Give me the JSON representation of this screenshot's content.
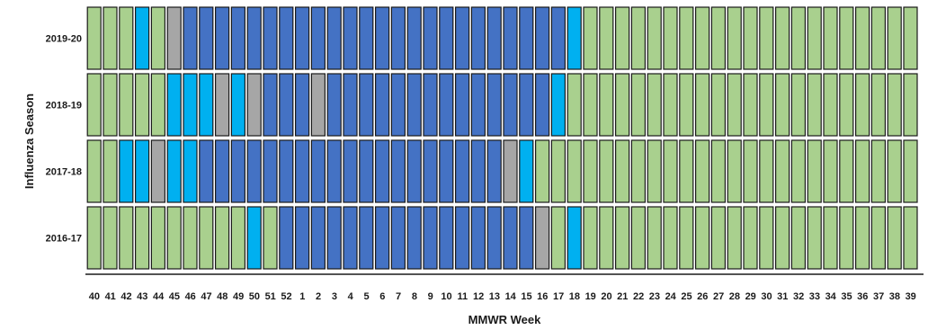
{
  "chart_data": {
    "type": "heatmap",
    "xlabel": "MMWR Week",
    "ylabel": "Influenza Season",
    "weeks": [
      "40",
      "41",
      "42",
      "43",
      "44",
      "45",
      "46",
      "47",
      "48",
      "49",
      "50",
      "51",
      "52",
      "1",
      "2",
      "3",
      "4",
      "5",
      "6",
      "7",
      "8",
      "9",
      "10",
      "11",
      "12",
      "13",
      "14",
      "15",
      "16",
      "17",
      "18",
      "19",
      "20",
      "21",
      "22",
      "23",
      "24",
      "25",
      "26",
      "27",
      "28",
      "29",
      "30",
      "31",
      "32",
      "33",
      "34",
      "35",
      "36",
      "37",
      "38",
      "39"
    ],
    "seasons": [
      "2019-20",
      "2018-19",
      "2017-18",
      "2016-17"
    ],
    "legend_colors": {
      "G": "#a9d08e",
      "C": "#00b0f0",
      "B": "#4472c4",
      "X": "#a6a6a6"
    },
    "rows": [
      {
        "season": "2019-20",
        "cells": [
          "G",
          "G",
          "G",
          "C",
          "G",
          "X",
          "B",
          "B",
          "B",
          "B",
          "B",
          "B",
          "B",
          "B",
          "B",
          "B",
          "B",
          "B",
          "B",
          "B",
          "B",
          "B",
          "B",
          "B",
          "B",
          "B",
          "B",
          "B",
          "B",
          "B",
          "C",
          "G",
          "G",
          "G",
          "G",
          "G",
          "G",
          "G",
          "G",
          "G",
          "G",
          "G",
          "G",
          "G",
          "G",
          "G",
          "G",
          "G",
          "G",
          "G",
          "G",
          "G"
        ]
      },
      {
        "season": "2018-19",
        "cells": [
          "G",
          "G",
          "G",
          "G",
          "G",
          "C",
          "C",
          "C",
          "X",
          "C",
          "X",
          "B",
          "B",
          "B",
          "X",
          "B",
          "B",
          "B",
          "B",
          "B",
          "B",
          "B",
          "B",
          "B",
          "B",
          "B",
          "B",
          "B",
          "B",
          "C",
          "G",
          "G",
          "G",
          "G",
          "G",
          "G",
          "G",
          "G",
          "G",
          "G",
          "G",
          "G",
          "G",
          "G",
          "G",
          "G",
          "G",
          "G",
          "G",
          "G",
          "G",
          "G"
        ]
      },
      {
        "season": "2017-18",
        "cells": [
          "G",
          "G",
          "C",
          "C",
          "X",
          "C",
          "C",
          "B",
          "B",
          "B",
          "B",
          "B",
          "B",
          "B",
          "B",
          "B",
          "B",
          "B",
          "B",
          "B",
          "B",
          "B",
          "B",
          "B",
          "B",
          "B",
          "X",
          "C",
          "G",
          "G",
          "G",
          "G",
          "G",
          "G",
          "G",
          "G",
          "G",
          "G",
          "G",
          "G",
          "G",
          "G",
          "G",
          "G",
          "G",
          "G",
          "G",
          "G",
          "G",
          "G",
          "G",
          "G"
        ]
      },
      {
        "season": "2016-17",
        "cells": [
          "G",
          "G",
          "G",
          "G",
          "G",
          "G",
          "G",
          "G",
          "G",
          "G",
          "C",
          "G",
          "B",
          "B",
          "B",
          "B",
          "B",
          "B",
          "B",
          "B",
          "B",
          "B",
          "B",
          "B",
          "B",
          "B",
          "B",
          "B",
          "X",
          "G",
          "C",
          "G",
          "G",
          "G",
          "G",
          "G",
          "G",
          "G",
          "G",
          "G",
          "G",
          "G",
          "G",
          "G",
          "G",
          "G",
          "G",
          "G",
          "G",
          "G",
          "G",
          "G"
        ]
      }
    ]
  }
}
